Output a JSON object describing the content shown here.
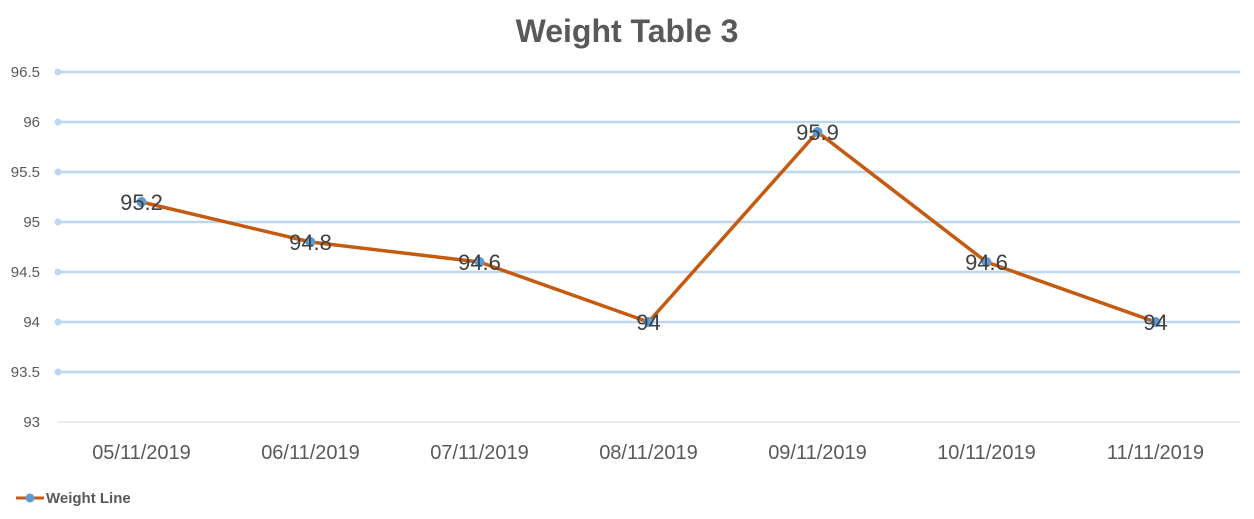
{
  "chart_data": {
    "type": "line",
    "title": "Weight Table 3",
    "categories": [
      "05/11/2019",
      "06/11/2019",
      "07/11/2019",
      "08/11/2019",
      "09/11/2019",
      "10/11/2019",
      "11/11/2019"
    ],
    "series": [
      {
        "name": "Weight Line",
        "values": [
          95.2,
          94.8,
          94.6,
          94,
          95.9,
          94.6,
          94
        ]
      }
    ],
    "data_labels": [
      "95.2",
      "94.8",
      "94.6",
      "94",
      "95.9",
      "94.6",
      "94"
    ],
    "ylim": [
      93,
      96.5
    ],
    "yticks": [
      "93",
      "93.5",
      "94",
      "94.5",
      "95",
      "95.5",
      "96",
      "96.5"
    ],
    "grid": true,
    "legend": "bottom-left",
    "colors": {
      "line": "#c55a11",
      "marker": "#5b9bd5",
      "grid": "#bdd7ee",
      "axis_text": "#595959"
    }
  }
}
